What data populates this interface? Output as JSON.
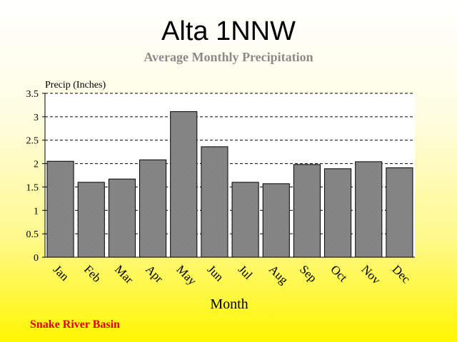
{
  "chart_data": {
    "type": "bar",
    "title": "Alta 1NNW",
    "subtitle": "Average Monthly Precipitation",
    "ylabel": "Precip (Inches)",
    "xlabel": "Month",
    "categories": [
      "Jan",
      "Feb",
      "Mar",
      "Apr",
      "May",
      "Jun",
      "Jul",
      "Aug",
      "Sep",
      "Oct",
      "Nov",
      "Dec"
    ],
    "values": [
      2.05,
      1.6,
      1.67,
      2.08,
      3.11,
      2.36,
      1.6,
      1.57,
      1.98,
      1.89,
      2.04,
      1.91
    ],
    "ylim": [
      0,
      3.5
    ],
    "yticks": [
      "0",
      "0.5",
      "1",
      "1.5",
      "2",
      "2.5",
      "3",
      "3.5"
    ],
    "grid": true,
    "colors": {
      "bar_fill": "#808080",
      "bar_stroke": "#000000",
      "plot_bg": "#ffffff",
      "grid": "#000000"
    }
  },
  "footer": {
    "text": "Snake River Basin"
  }
}
